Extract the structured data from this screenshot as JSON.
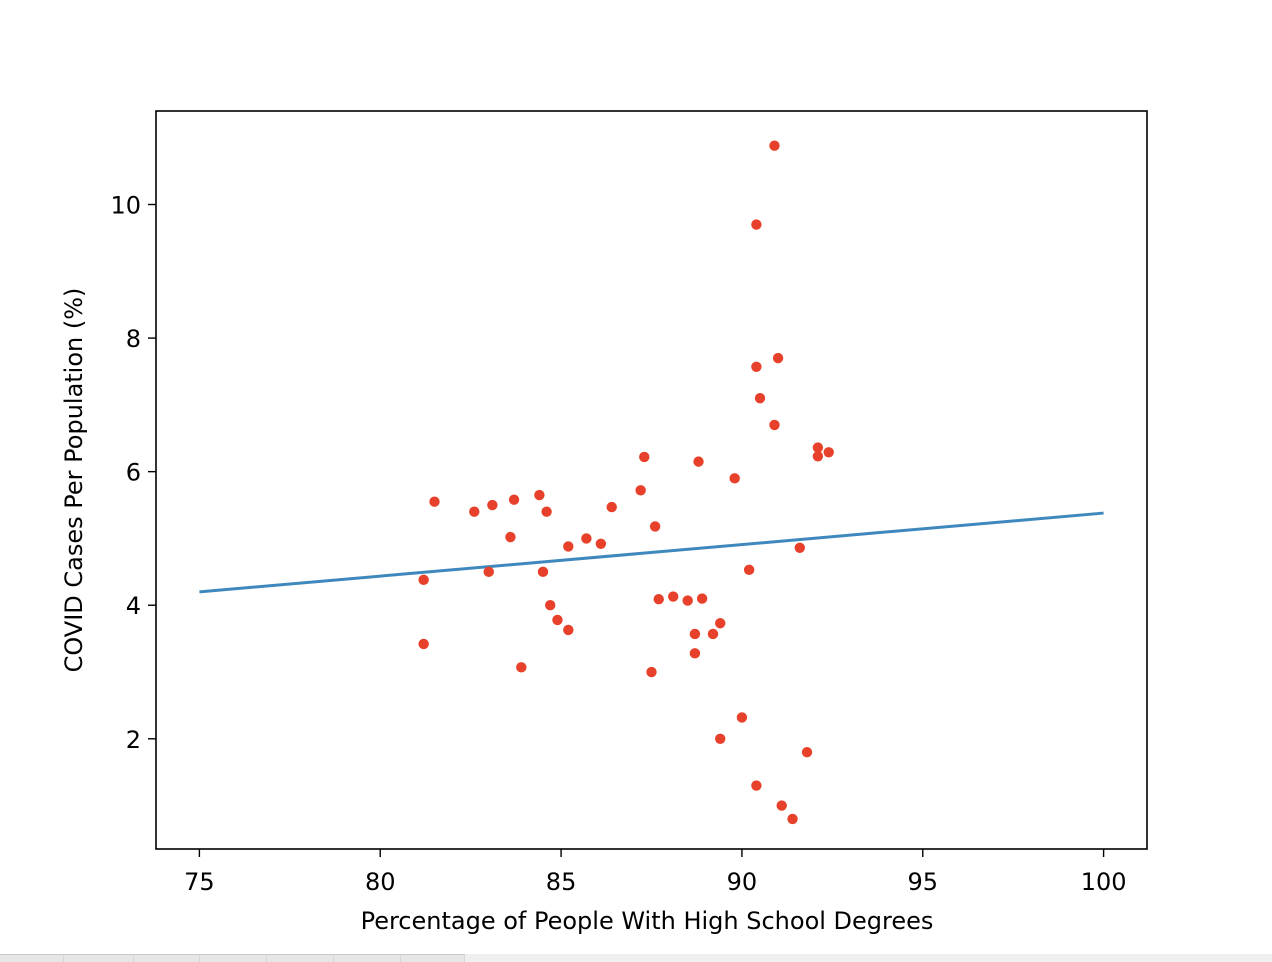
{
  "chart_data": {
    "type": "scatter",
    "title": "",
    "xlabel": "Percentage of People With High School Degrees",
    "ylabel": "COVID Cases Per Population (%)",
    "xlim": [
      73.8,
      101.2
    ],
    "ylim": [
      0.35,
      11.4
    ],
    "x_ticks": [
      75,
      80,
      85,
      90,
      95,
      100
    ],
    "y_ticks": [
      2,
      4,
      6,
      8,
      10
    ],
    "x_tick_labels": [
      "75",
      "80",
      "85",
      "90",
      "95",
      "100"
    ],
    "y_tick_labels": [
      "2",
      "4",
      "6",
      "8",
      "10"
    ],
    "grid": false,
    "legend": "none",
    "point_color": "#e8412b",
    "line_color": "#3f88bd",
    "points": [
      {
        "x": 81.2,
        "y": 4.38
      },
      {
        "x": 81.2,
        "y": 3.42
      },
      {
        "x": 81.5,
        "y": 5.55
      },
      {
        "x": 82.6,
        "y": 5.4
      },
      {
        "x": 83.0,
        "y": 4.5
      },
      {
        "x": 83.1,
        "y": 5.5
      },
      {
        "x": 83.6,
        "y": 5.02
      },
      {
        "x": 83.7,
        "y": 5.58
      },
      {
        "x": 83.9,
        "y": 3.07
      },
      {
        "x": 84.4,
        "y": 5.65
      },
      {
        "x": 84.5,
        "y": 4.5
      },
      {
        "x": 84.6,
        "y": 5.4
      },
      {
        "x": 84.7,
        "y": 4.0
      },
      {
        "x": 84.9,
        "y": 3.78
      },
      {
        "x": 85.2,
        "y": 4.88
      },
      {
        "x": 85.2,
        "y": 3.63
      },
      {
        "x": 85.7,
        "y": 5.0
      },
      {
        "x": 86.1,
        "y": 4.92
      },
      {
        "x": 86.4,
        "y": 5.47
      },
      {
        "x": 87.2,
        "y": 5.72
      },
      {
        "x": 87.3,
        "y": 6.22
      },
      {
        "x": 87.5,
        "y": 3.0
      },
      {
        "x": 87.6,
        "y": 5.18
      },
      {
        "x": 87.7,
        "y": 4.09
      },
      {
        "x": 88.1,
        "y": 4.13
      },
      {
        "x": 88.5,
        "y": 4.07
      },
      {
        "x": 88.7,
        "y": 3.57
      },
      {
        "x": 88.7,
        "y": 3.28
      },
      {
        "x": 88.8,
        "y": 6.15
      },
      {
        "x": 88.9,
        "y": 4.1
      },
      {
        "x": 89.2,
        "y": 3.57
      },
      {
        "x": 89.4,
        "y": 3.73
      },
      {
        "x": 89.4,
        "y": 2.0
      },
      {
        "x": 89.8,
        "y": 5.9
      },
      {
        "x": 90.0,
        "y": 2.32
      },
      {
        "x": 90.2,
        "y": 4.53
      },
      {
        "x": 90.4,
        "y": 9.7
      },
      {
        "x": 90.4,
        "y": 7.57
      },
      {
        "x": 90.4,
        "y": 1.3
      },
      {
        "x": 90.5,
        "y": 7.1
      },
      {
        "x": 90.9,
        "y": 10.88
      },
      {
        "x": 90.9,
        "y": 6.7
      },
      {
        "x": 91.0,
        "y": 7.7
      },
      {
        "x": 91.1,
        "y": 1.0
      },
      {
        "x": 91.4,
        "y": 0.8
      },
      {
        "x": 91.6,
        "y": 4.86
      },
      {
        "x": 91.8,
        "y": 1.8
      },
      {
        "x": 92.1,
        "y": 6.36
      },
      {
        "x": 92.1,
        "y": 6.23
      },
      {
        "x": 92.4,
        "y": 6.29
      }
    ],
    "regression_line": {
      "x": [
        75,
        100
      ],
      "y": [
        4.2,
        5.38
      ]
    }
  }
}
